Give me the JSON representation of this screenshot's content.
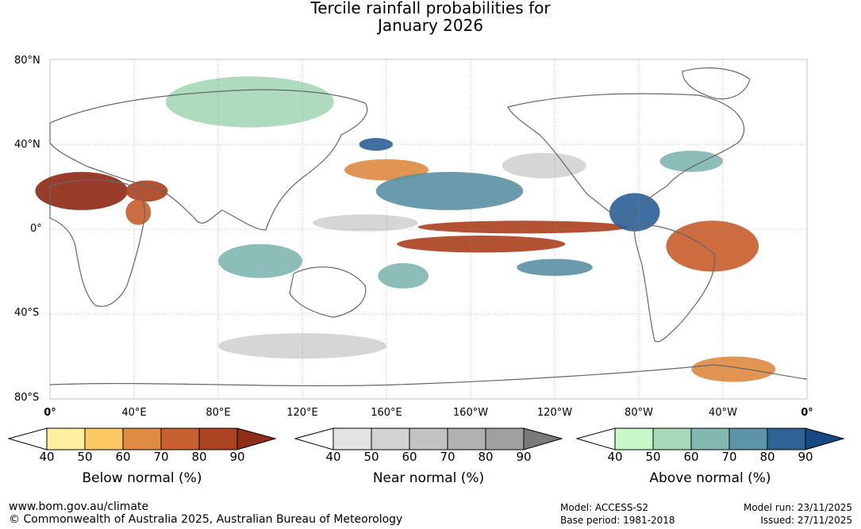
{
  "title": {
    "line1": "Tercile rainfall probabilities for",
    "line2": "January 2026"
  },
  "map": {
    "lat_labels": [
      "80°N",
      "40°N",
      "0°",
      "40°S",
      "80°S"
    ],
    "lon_labels": [
      "0°",
      "40°E",
      "80°E",
      "120°E",
      "160°E",
      "160°W",
      "120°W",
      "80°W",
      "40°W",
      "0°"
    ],
    "projection_extent": {
      "lon": [
        0,
        360
      ],
      "lat": [
        -80,
        80
      ]
    },
    "regions": [
      {
        "name": "sahara-dry",
        "category": "below",
        "level": 90,
        "lon": 15,
        "lat": 18,
        "rx": 22,
        "ry": 9
      },
      {
        "name": "arabia-dry",
        "category": "below",
        "level": 80,
        "lon": 46,
        "lat": 18,
        "rx": 10,
        "ry": 5
      },
      {
        "name": "east-africa-dry",
        "category": "below",
        "level": 70,
        "lon": 42,
        "lat": 8,
        "rx": 6,
        "ry": 6
      },
      {
        "name": "equatorial-pacific-north-dry",
        "category": "below",
        "level": 80,
        "lon": 225,
        "lat": 1,
        "rx": 50,
        "ry": 3
      },
      {
        "name": "equatorial-pacific-south-dry",
        "category": "below",
        "level": 80,
        "lon": 205,
        "lat": -7,
        "rx": 40,
        "ry": 4
      },
      {
        "name": "brazil-dry",
        "category": "below",
        "level": 70,
        "lon": 315,
        "lat": -8,
        "rx": 22,
        "ry": 12
      },
      {
        "name": "north-pacific-dry",
        "category": "below",
        "level": 60,
        "lon": 160,
        "lat": 28,
        "rx": 20,
        "ry": 5
      },
      {
        "name": "antarctic-dry",
        "category": "below",
        "level": 60,
        "lon": 325,
        "lat": -66,
        "rx": 20,
        "ry": 6
      },
      {
        "name": "central-pacific-wet",
        "category": "above",
        "level": 70,
        "lon": 190,
        "lat": 18,
        "rx": 35,
        "ry": 9
      },
      {
        "name": "kuroshio-wet",
        "category": "above",
        "level": 80,
        "lon": 155,
        "lat": 40,
        "rx": 8,
        "ry": 3
      },
      {
        "name": "central-america-wet",
        "category": "above",
        "level": 80,
        "lon": 278,
        "lat": 8,
        "rx": 12,
        "ry": 9
      },
      {
        "name": "south-pacific-wet",
        "category": "above",
        "level": 70,
        "lon": 240,
        "lat": -18,
        "rx": 18,
        "ry": 4
      },
      {
        "name": "indian-ocean-wet",
        "category": "above",
        "level": 60,
        "lon": 100,
        "lat": -15,
        "rx": 20,
        "ry": 8
      },
      {
        "name": "coral-sea-wet",
        "category": "above",
        "level": 60,
        "lon": 168,
        "lat": -22,
        "rx": 12,
        "ry": 6
      },
      {
        "name": "north-atlantic-wet",
        "category": "above",
        "level": 60,
        "lon": 305,
        "lat": 32,
        "rx": 15,
        "ry": 5
      },
      {
        "name": "siberia-wet",
        "category": "above",
        "level": 50,
        "lon": 95,
        "lat": 60,
        "rx": 40,
        "ry": 12
      },
      {
        "name": "west-pacific-normal",
        "category": "near",
        "level": 50,
        "lon": 150,
        "lat": 3,
        "rx": 25,
        "ry": 4
      },
      {
        "name": "east-pacific-normal",
        "category": "near",
        "level": 50,
        "lon": 235,
        "lat": 30,
        "rx": 20,
        "ry": 6
      },
      {
        "name": "southern-ocean-normal",
        "category": "near",
        "level": 50,
        "lon": 120,
        "lat": -55,
        "rx": 40,
        "ry": 6
      }
    ]
  },
  "colorbars": [
    {
      "id": "below",
      "title": "Below normal (%)",
      "ticks": [
        "40",
        "50",
        "60",
        "70",
        "80",
        "90"
      ],
      "colors": [
        "#fff0a0",
        "#fec965",
        "#e08b44",
        "#c8602f",
        "#ac4322"
      ],
      "end_color": "#8f2d18"
    },
    {
      "id": "near",
      "title": "Near normal (%)",
      "ticks": [
        "40",
        "50",
        "60",
        "70",
        "80",
        "90"
      ],
      "colors": [
        "#e3e3e3",
        "#d2d2d2",
        "#c2c2c2",
        "#b1b1b1",
        "#a0a0a0"
      ],
      "end_color": "#7a7a7a"
    },
    {
      "id": "above",
      "title": "Above normal (%)",
      "ticks": [
        "40",
        "50",
        "60",
        "70",
        "80",
        "90"
      ],
      "colors": [
        "#c7f8c8",
        "#a7d8b7",
        "#83b7b2",
        "#5c93a6",
        "#2f6398"
      ],
      "end_color": "#174984"
    }
  ],
  "footer": {
    "url": "www.bom.gov.au/climate",
    "copyright": "© Commonwealth of Australia 2025, Australian Bureau of Meteorology",
    "model": "Model: ACCESS-S2",
    "base_period": "Base period: 1981-2018",
    "model_run": "Model run: 23/11/2025",
    "issued": "Issued: 27/11/2025"
  }
}
